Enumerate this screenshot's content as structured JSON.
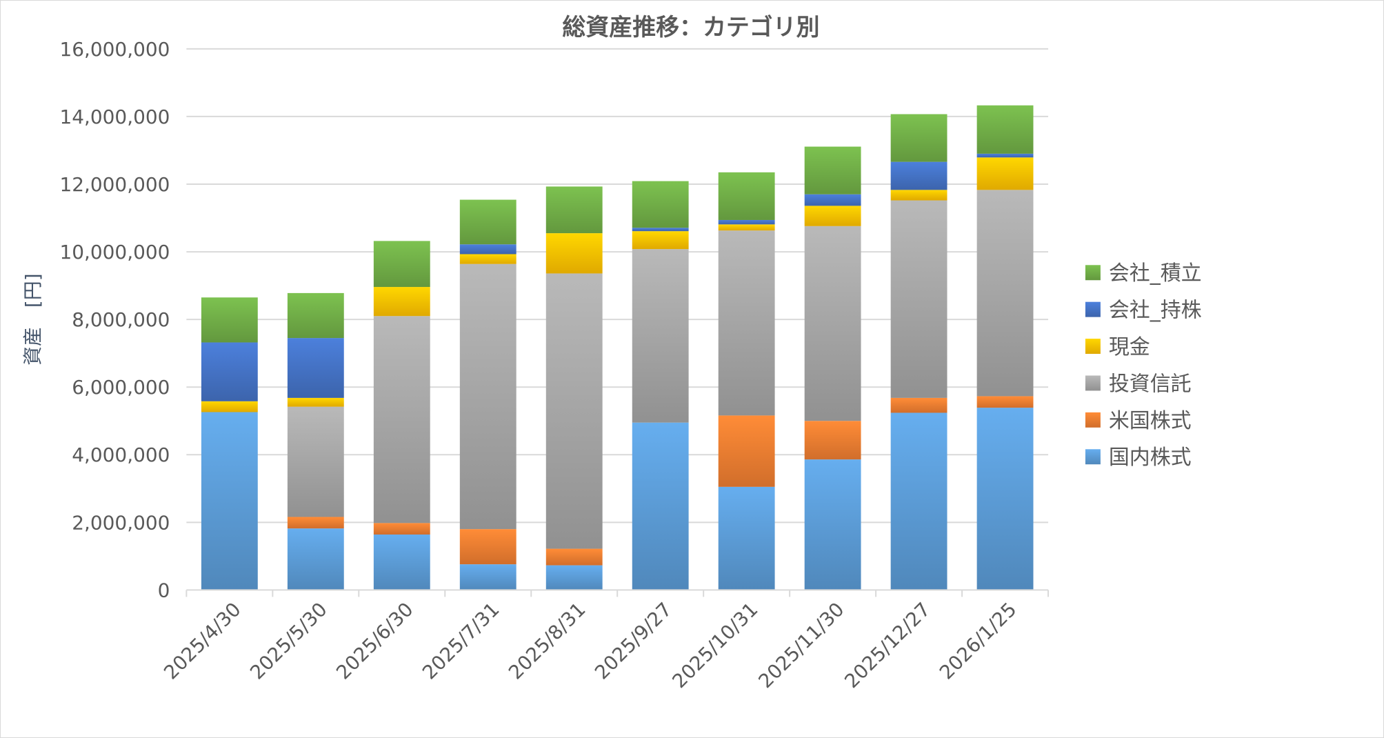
{
  "chart_data": {
    "type": "bar",
    "stacked": true,
    "title": "総資産推移：カテゴリ別",
    "xlabel": "",
    "ylabel": "資産　[円]",
    "ylim": [
      0,
      16000000
    ],
    "yticks": [
      "0",
      "2,000,000",
      "4,000,000",
      "6,000,000",
      "8,000,000",
      "10,000,000",
      "12,000,000",
      "14,000,000",
      "16,000,000"
    ],
    "grid": true,
    "legend_position": "right",
    "categories": [
      "2025/4/30",
      "2025/5/30",
      "2025/6/30",
      "2025/7/31",
      "2025/8/31",
      "2025/9/27",
      "2025/10/31",
      "2025/11/30",
      "2025/12/27",
      "2026/1/25"
    ],
    "series": [
      {
        "name": "国内株式",
        "color": "#5b9bd5",
        "values": [
          5260000,
          1820000,
          1640000,
          760000,
          730000,
          4950000,
          3050000,
          3860000,
          5240000,
          5390000
        ]
      },
      {
        "name": "米国株式",
        "color": "#ed7d31",
        "values": [
          0,
          340000,
          340000,
          1040000,
          490000,
          0,
          2110000,
          1140000,
          440000,
          340000
        ]
      },
      {
        "name": "投資信託",
        "color": "#a5a5a5",
        "values": [
          0,
          3260000,
          6120000,
          7840000,
          8140000,
          5130000,
          5470000,
          5760000,
          5840000,
          6100000
        ]
      },
      {
        "name": "現金",
        "color": "#ffc000",
        "values": [
          320000,
          260000,
          860000,
          290000,
          1190000,
          530000,
          180000,
          600000,
          310000,
          960000
        ]
      },
      {
        "name": "会社_持株",
        "color": "#4472c4",
        "values": [
          1740000,
          1770000,
          0,
          290000,
          0,
          100000,
          130000,
          340000,
          830000,
          110000
        ]
      },
      {
        "name": "会社_積立",
        "color": "#70ad47",
        "values": [
          1330000,
          1330000,
          1360000,
          1320000,
          1380000,
          1380000,
          1410000,
          1410000,
          1410000,
          1430000
        ]
      }
    ]
  }
}
